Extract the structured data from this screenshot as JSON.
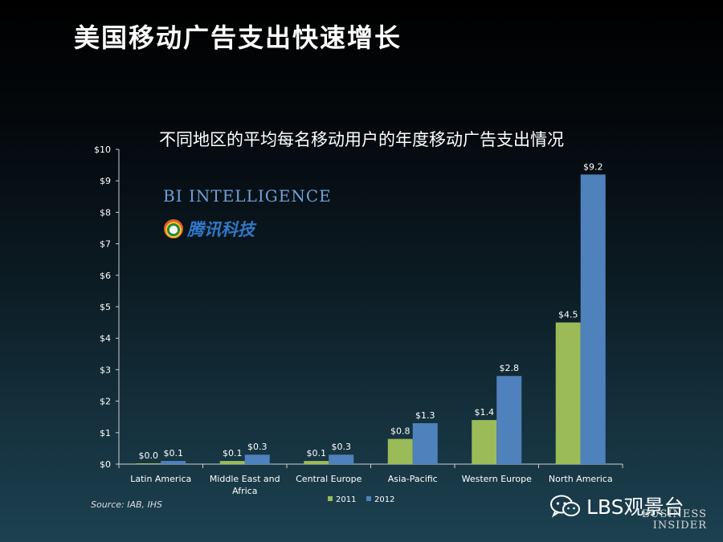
{
  "slide": {
    "title": "美国移动广告支出快速增长",
    "source": "Source: IAB, IHS",
    "watermark": "LBS观景台"
  },
  "logos": {
    "bi_intelligence": "BI INTELLIGENCE",
    "tencent": "腾讯科技",
    "business_insider": [
      "BUSINESS",
      "INSIDER"
    ]
  },
  "chart_data": {
    "type": "bar",
    "title": "不同地区的平均每名移动用户的年度移动广告支出情况",
    "categories": [
      [
        "Latin America"
      ],
      [
        "Middle East and",
        "Africa"
      ],
      [
        "Central Europe"
      ],
      [
        "Asia-Pacific"
      ],
      [
        "Western Europe"
      ],
      [
        "North America"
      ]
    ],
    "series": [
      {
        "name": "2011",
        "color": "#9bbb59",
        "values": [
          0.0,
          0.1,
          0.1,
          0.8,
          1.4,
          4.5
        ],
        "labels": [
          "$0.0",
          "$0.1",
          "$0.1",
          "$0.8",
          "$1.4",
          "$4.5"
        ]
      },
      {
        "name": "2012",
        "color": "#4f81bd",
        "values": [
          0.1,
          0.3,
          0.3,
          1.3,
          2.8,
          9.2
        ],
        "labels": [
          "$0.1",
          "$0.3",
          "$0.3",
          "$1.3",
          "$2.8",
          "$9.2"
        ]
      }
    ],
    "yticks": [
      "$0",
      "$1",
      "$2",
      "$3",
      "$4",
      "$5",
      "$6",
      "$7",
      "$8",
      "$9",
      "$10"
    ],
    "ylim": [
      0,
      10
    ],
    "xlabel": "",
    "ylabel": "",
    "legend_position": "bottom",
    "grid": false
  }
}
